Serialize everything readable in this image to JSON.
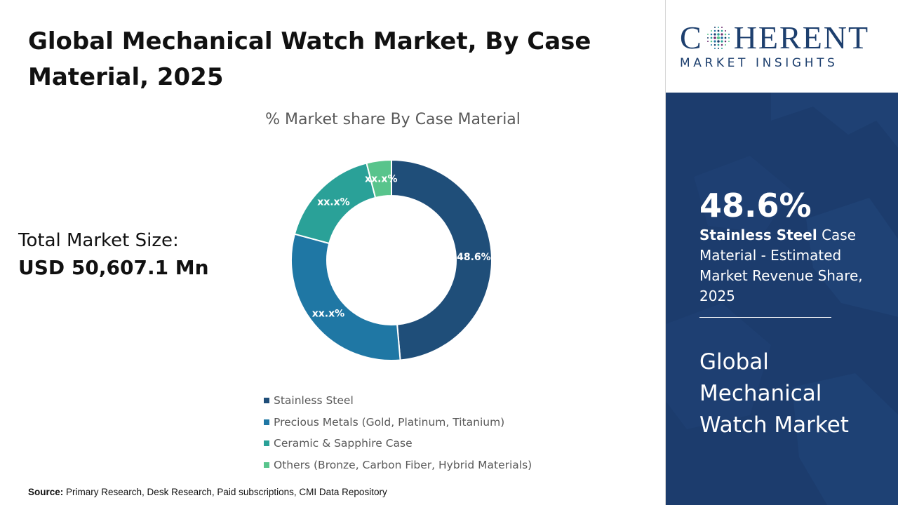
{
  "title": "Global Mechanical Watch Market, By Case Material, 2025",
  "market_size": {
    "label": "Total Market Size:",
    "value": "USD 50,607.1 Mn"
  },
  "source": {
    "label": "Source:",
    "text": "Primary Research, Desk Research, Paid subscriptions, CMI Data Repository"
  },
  "logo": {
    "word_start": "C",
    "word_end": "HERENT",
    "tagline": "MARKET INSIGHTS"
  },
  "highlight": {
    "value": "48.6%",
    "segment": "Stainless Steel",
    "description": "Case Material - Estimated Market Revenue Share, 2025",
    "panel_title": "Global Mechanical Watch Market"
  },
  "colors": {
    "accent": "#1c3c6d",
    "logo": "#1d3f6e"
  },
  "chart_data": {
    "type": "pie",
    "donut": true,
    "title": "% Market share By Case Material",
    "categories": [
      "Stainless Steel",
      "Precious Metals (Gold, Platinum, Titanium)",
      "Ceramic & Sapphire Case",
      "Others (Bronze, Carbon Fiber, Hybrid Materials)"
    ],
    "values": [
      48.6,
      30.6,
      16.8,
      4.0
    ],
    "data_labels": [
      "48.6%",
      "xx.x%",
      "xx.x%",
      "xx.x%"
    ],
    "colors": [
      "#1f4e79",
      "#1f77a4",
      "#2aa198",
      "#58c48c"
    ],
    "legend": "bottom"
  }
}
